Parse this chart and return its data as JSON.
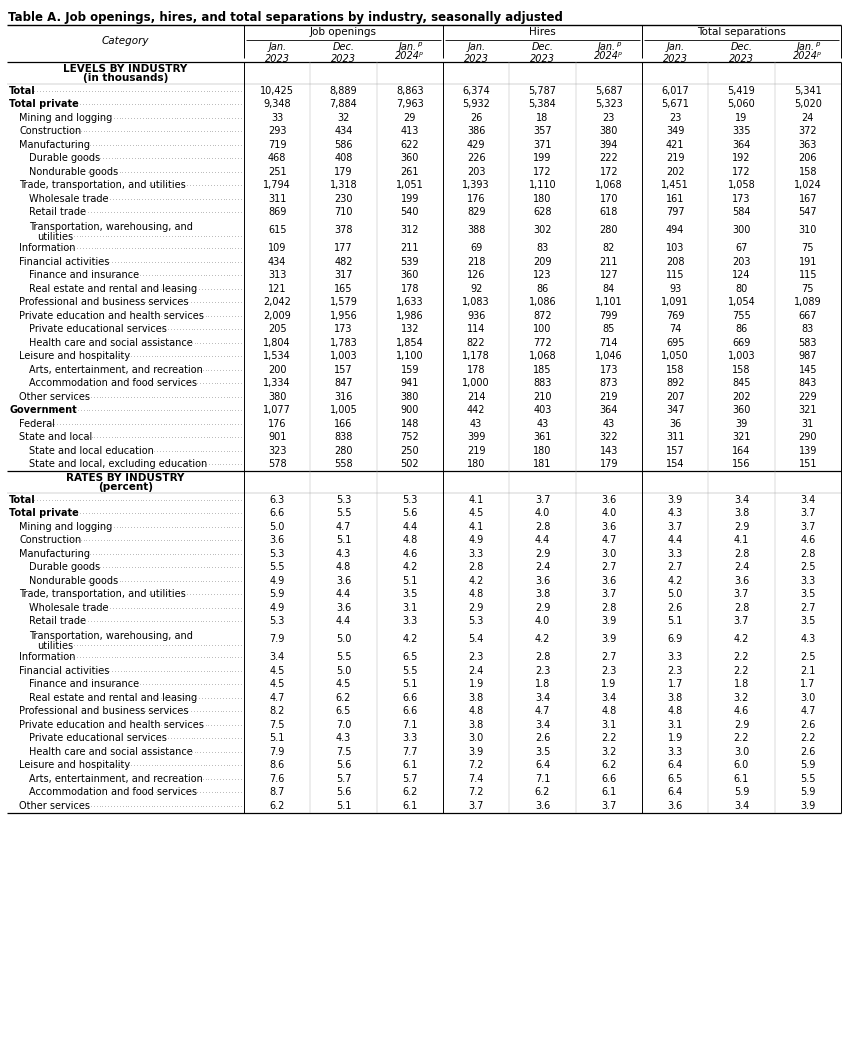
{
  "title": "Table A. Job openings, hires, and total separations by industry, seasonally adjusted",
  "col_groups": [
    "Job openings",
    "Hires",
    "Total separations"
  ],
  "section1_header1": "LEVELS BY INDUSTRY",
  "section1_header2": "(in thousands)",
  "section2_header1": "RATES BY INDUSTRY",
  "section2_header2": "(percent)",
  "rows_levels": [
    {
      "label": "Total",
      "indent": 0,
      "bold": true,
      "wrap": false,
      "vals": [
        "10,425",
        "8,889",
        "8,863",
        "6,374",
        "5,787",
        "5,687",
        "6,017",
        "5,419",
        "5,341"
      ]
    },
    {
      "label": "Total private",
      "indent": 1,
      "bold": true,
      "wrap": false,
      "vals": [
        "9,348",
        "7,884",
        "7,963",
        "5,932",
        "5,384",
        "5,323",
        "5,671",
        "5,060",
        "5,020"
      ]
    },
    {
      "label": "Mining and logging",
      "indent": 2,
      "bold": false,
      "wrap": false,
      "vals": [
        "33",
        "32",
        "29",
        "26",
        "18",
        "23",
        "23",
        "19",
        "24"
      ]
    },
    {
      "label": "Construction",
      "indent": 2,
      "bold": false,
      "wrap": false,
      "vals": [
        "293",
        "434",
        "413",
        "386",
        "357",
        "380",
        "349",
        "335",
        "372"
      ]
    },
    {
      "label": "Manufacturing",
      "indent": 2,
      "bold": false,
      "wrap": false,
      "vals": [
        "719",
        "586",
        "622",
        "429",
        "371",
        "394",
        "421",
        "364",
        "363"
      ]
    },
    {
      "label": "Durable goods",
      "indent": 3,
      "bold": false,
      "wrap": false,
      "vals": [
        "468",
        "408",
        "360",
        "226",
        "199",
        "222",
        "219",
        "192",
        "206"
      ]
    },
    {
      "label": "Nondurable goods",
      "indent": 3,
      "bold": false,
      "wrap": false,
      "vals": [
        "251",
        "179",
        "261",
        "203",
        "172",
        "172",
        "202",
        "172",
        "158"
      ]
    },
    {
      "label": "Trade, transportation, and utilities",
      "indent": 2,
      "bold": false,
      "wrap": false,
      "vals": [
        "1,794",
        "1,318",
        "1,051",
        "1,393",
        "1,110",
        "1,068",
        "1,451",
        "1,058",
        "1,024"
      ]
    },
    {
      "label": "Wholesale trade",
      "indent": 3,
      "bold": false,
      "wrap": false,
      "vals": [
        "311",
        "230",
        "199",
        "176",
        "180",
        "170",
        "161",
        "173",
        "167"
      ]
    },
    {
      "label": "Retail trade",
      "indent": 3,
      "bold": false,
      "wrap": false,
      "vals": [
        "869",
        "710",
        "540",
        "829",
        "628",
        "618",
        "797",
        "584",
        "547"
      ]
    },
    {
      "label": "Transportation, warehousing, and",
      "label2": "utilities",
      "indent": 3,
      "bold": false,
      "wrap": true,
      "vals": [
        "615",
        "378",
        "312",
        "388",
        "302",
        "280",
        "494",
        "300",
        "310"
      ]
    },
    {
      "label": "Information",
      "indent": 2,
      "bold": false,
      "wrap": false,
      "vals": [
        "109",
        "177",
        "211",
        "69",
        "83",
        "82",
        "103",
        "67",
        "75"
      ]
    },
    {
      "label": "Financial activities",
      "indent": 2,
      "bold": false,
      "wrap": false,
      "vals": [
        "434",
        "482",
        "539",
        "218",
        "209",
        "211",
        "208",
        "203",
        "191"
      ]
    },
    {
      "label": "Finance and insurance",
      "indent": 3,
      "bold": false,
      "wrap": false,
      "vals": [
        "313",
        "317",
        "360",
        "126",
        "123",
        "127",
        "115",
        "124",
        "115"
      ]
    },
    {
      "label": "Real estate and rental and leasing",
      "indent": 3,
      "bold": false,
      "wrap": false,
      "vals": [
        "121",
        "165",
        "178",
        "92",
        "86",
        "84",
        "93",
        "80",
        "75"
      ]
    },
    {
      "label": "Professional and business services",
      "indent": 2,
      "bold": false,
      "wrap": false,
      "vals": [
        "2,042",
        "1,579",
        "1,633",
        "1,083",
        "1,086",
        "1,101",
        "1,091",
        "1,054",
        "1,089"
      ]
    },
    {
      "label": "Private education and health services",
      "indent": 2,
      "bold": false,
      "wrap": false,
      "vals": [
        "2,009",
        "1,956",
        "1,986",
        "936",
        "872",
        "799",
        "769",
        "755",
        "667"
      ]
    },
    {
      "label": "Private educational services",
      "indent": 3,
      "bold": false,
      "wrap": false,
      "vals": [
        "205",
        "173",
        "132",
        "114",
        "100",
        "85",
        "74",
        "86",
        "83"
      ]
    },
    {
      "label": "Health care and social assistance",
      "indent": 3,
      "bold": false,
      "wrap": false,
      "vals": [
        "1,804",
        "1,783",
        "1,854",
        "822",
        "772",
        "714",
        "695",
        "669",
        "583"
      ]
    },
    {
      "label": "Leisure and hospitality",
      "indent": 2,
      "bold": false,
      "wrap": false,
      "vals": [
        "1,534",
        "1,003",
        "1,100",
        "1,178",
        "1,068",
        "1,046",
        "1,050",
        "1,003",
        "987"
      ]
    },
    {
      "label": "Arts, entertainment, and recreation",
      "indent": 3,
      "bold": false,
      "wrap": false,
      "vals": [
        "200",
        "157",
        "159",
        "178",
        "185",
        "173",
        "158",
        "158",
        "145"
      ]
    },
    {
      "label": "Accommodation and food services",
      "indent": 3,
      "bold": false,
      "wrap": false,
      "vals": [
        "1,334",
        "847",
        "941",
        "1,000",
        "883",
        "873",
        "892",
        "845",
        "843"
      ]
    },
    {
      "label": "Other services",
      "indent": 2,
      "bold": false,
      "wrap": false,
      "vals": [
        "380",
        "316",
        "380",
        "214",
        "210",
        "219",
        "207",
        "202",
        "229"
      ]
    },
    {
      "label": "Government",
      "indent": 1,
      "bold": true,
      "wrap": false,
      "vals": [
        "1,077",
        "1,005",
        "900",
        "442",
        "403",
        "364",
        "347",
        "360",
        "321"
      ]
    },
    {
      "label": "Federal",
      "indent": 2,
      "bold": false,
      "wrap": false,
      "vals": [
        "176",
        "166",
        "148",
        "43",
        "43",
        "43",
        "36",
        "39",
        "31"
      ]
    },
    {
      "label": "State and local",
      "indent": 2,
      "bold": false,
      "wrap": false,
      "vals": [
        "901",
        "838",
        "752",
        "399",
        "361",
        "322",
        "311",
        "321",
        "290"
      ]
    },
    {
      "label": "State and local education",
      "indent": 3,
      "bold": false,
      "wrap": false,
      "vals": [
        "323",
        "280",
        "250",
        "219",
        "180",
        "143",
        "157",
        "164",
        "139"
      ]
    },
    {
      "label": "State and local, excluding education",
      "indent": 3,
      "bold": false,
      "wrap": false,
      "vals": [
        "578",
        "558",
        "502",
        "180",
        "181",
        "179",
        "154",
        "156",
        "151"
      ]
    }
  ],
  "rows_rates": [
    {
      "label": "Total",
      "indent": 0,
      "bold": true,
      "wrap": false,
      "vals": [
        "6.3",
        "5.3",
        "5.3",
        "4.1",
        "3.7",
        "3.6",
        "3.9",
        "3.4",
        "3.4"
      ]
    },
    {
      "label": "Total private",
      "indent": 1,
      "bold": true,
      "wrap": false,
      "vals": [
        "6.6",
        "5.5",
        "5.6",
        "4.5",
        "4.0",
        "4.0",
        "4.3",
        "3.8",
        "3.7"
      ]
    },
    {
      "label": "Mining and logging",
      "indent": 2,
      "bold": false,
      "wrap": false,
      "vals": [
        "5.0",
        "4.7",
        "4.4",
        "4.1",
        "2.8",
        "3.6",
        "3.7",
        "2.9",
        "3.7"
      ]
    },
    {
      "label": "Construction",
      "indent": 2,
      "bold": false,
      "wrap": false,
      "vals": [
        "3.6",
        "5.1",
        "4.8",
        "4.9",
        "4.4",
        "4.7",
        "4.4",
        "4.1",
        "4.6"
      ]
    },
    {
      "label": "Manufacturing",
      "indent": 2,
      "bold": false,
      "wrap": false,
      "vals": [
        "5.3",
        "4.3",
        "4.6",
        "3.3",
        "2.9",
        "3.0",
        "3.3",
        "2.8",
        "2.8"
      ]
    },
    {
      "label": "Durable goods",
      "indent": 3,
      "bold": false,
      "wrap": false,
      "vals": [
        "5.5",
        "4.8",
        "4.2",
        "2.8",
        "2.4",
        "2.7",
        "2.7",
        "2.4",
        "2.5"
      ]
    },
    {
      "label": "Nondurable goods",
      "indent": 3,
      "bold": false,
      "wrap": false,
      "vals": [
        "4.9",
        "3.6",
        "5.1",
        "4.2",
        "3.6",
        "3.6",
        "4.2",
        "3.6",
        "3.3"
      ]
    },
    {
      "label": "Trade, transportation, and utilities",
      "indent": 2,
      "bold": false,
      "wrap": false,
      "vals": [
        "5.9",
        "4.4",
        "3.5",
        "4.8",
        "3.8",
        "3.7",
        "5.0",
        "3.7",
        "3.5"
      ]
    },
    {
      "label": "Wholesale trade",
      "indent": 3,
      "bold": false,
      "wrap": false,
      "vals": [
        "4.9",
        "3.6",
        "3.1",
        "2.9",
        "2.9",
        "2.8",
        "2.6",
        "2.8",
        "2.7"
      ]
    },
    {
      "label": "Retail trade",
      "indent": 3,
      "bold": false,
      "wrap": false,
      "vals": [
        "5.3",
        "4.4",
        "3.3",
        "5.3",
        "4.0",
        "3.9",
        "5.1",
        "3.7",
        "3.5"
      ]
    },
    {
      "label": "Transportation, warehousing, and",
      "label2": "utilities",
      "indent": 3,
      "bold": false,
      "wrap": true,
      "vals": [
        "7.9",
        "5.0",
        "4.2",
        "5.4",
        "4.2",
        "3.9",
        "6.9",
        "4.2",
        "4.3"
      ]
    },
    {
      "label": "Information",
      "indent": 2,
      "bold": false,
      "wrap": false,
      "vals": [
        "3.4",
        "5.5",
        "6.5",
        "2.3",
        "2.8",
        "2.7",
        "3.3",
        "2.2",
        "2.5"
      ]
    },
    {
      "label": "Financial activities",
      "indent": 2,
      "bold": false,
      "wrap": false,
      "vals": [
        "4.5",
        "5.0",
        "5.5",
        "2.4",
        "2.3",
        "2.3",
        "2.3",
        "2.2",
        "2.1"
      ]
    },
    {
      "label": "Finance and insurance",
      "indent": 3,
      "bold": false,
      "wrap": false,
      "vals": [
        "4.5",
        "4.5",
        "5.1",
        "1.9",
        "1.8",
        "1.9",
        "1.7",
        "1.8",
        "1.7"
      ]
    },
    {
      "label": "Real estate and rental and leasing",
      "indent": 3,
      "bold": false,
      "wrap": false,
      "vals": [
        "4.7",
        "6.2",
        "6.6",
        "3.8",
        "3.4",
        "3.4",
        "3.8",
        "3.2",
        "3.0"
      ]
    },
    {
      "label": "Professional and business services",
      "indent": 2,
      "bold": false,
      "wrap": false,
      "vals": [
        "8.2",
        "6.5",
        "6.6",
        "4.8",
        "4.7",
        "4.8",
        "4.8",
        "4.6",
        "4.7"
      ]
    },
    {
      "label": "Private education and health services",
      "indent": 2,
      "bold": false,
      "wrap": false,
      "vals": [
        "7.5",
        "7.0",
        "7.1",
        "3.8",
        "3.4",
        "3.1",
        "3.1",
        "2.9",
        "2.6"
      ]
    },
    {
      "label": "Private educational services",
      "indent": 3,
      "bold": false,
      "wrap": false,
      "vals": [
        "5.1",
        "4.3",
        "3.3",
        "3.0",
        "2.6",
        "2.2",
        "1.9",
        "2.2",
        "2.2"
      ]
    },
    {
      "label": "Health care and social assistance",
      "indent": 3,
      "bold": false,
      "wrap": false,
      "vals": [
        "7.9",
        "7.5",
        "7.7",
        "3.9",
        "3.5",
        "3.2",
        "3.3",
        "3.0",
        "2.6"
      ]
    },
    {
      "label": "Leisure and hospitality",
      "indent": 2,
      "bold": false,
      "wrap": false,
      "vals": [
        "8.6",
        "5.6",
        "6.1",
        "7.2",
        "6.4",
        "6.2",
        "6.4",
        "6.0",
        "5.9"
      ]
    },
    {
      "label": "Arts, entertainment, and recreation",
      "indent": 3,
      "bold": false,
      "wrap": false,
      "vals": [
        "7.6",
        "5.7",
        "5.7",
        "7.4",
        "7.1",
        "6.6",
        "6.5",
        "6.1",
        "5.5"
      ]
    },
    {
      "label": "Accommodation and food services",
      "indent": 3,
      "bold": false,
      "wrap": false,
      "vals": [
        "8.7",
        "5.6",
        "6.2",
        "7.2",
        "6.2",
        "6.1",
        "6.4",
        "5.9",
        "5.9"
      ]
    },
    {
      "label": "Other services",
      "indent": 2,
      "bold": false,
      "wrap": false,
      "vals": [
        "6.2",
        "5.1",
        "6.1",
        "3.7",
        "3.6",
        "3.7",
        "3.6",
        "3.4",
        "3.9"
      ]
    }
  ]
}
